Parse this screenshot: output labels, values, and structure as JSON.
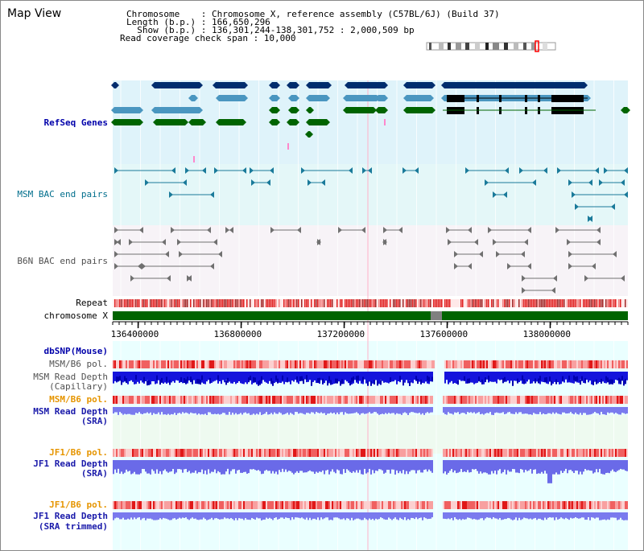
{
  "page_title": "Map View",
  "info": {
    "line1": "Chromosome    : Chromosome X, reference assembly (C57BL/6J) (Build 37)",
    "line2": "Length (b.p.) : 166,650,296",
    "line3": "  Show (b.p.) : 136,301,244-138,301,752 : 2,000,509 bp",
    "line4": "Read coverage check span : 10,000"
  },
  "tracks": {
    "refseq": "RefSeq Genes",
    "msm_bac": "MSM BAC end pairs",
    "b6n_bac": "B6N BAC end pairs",
    "repeat": "Repeat",
    "chromosome": "chromosome X",
    "dbsnp": "dbSNP(Mouse)",
    "msm_b6_pol_cap": "MSM/B6 pol.",
    "msm_depth_cap_1": "MSM Read Depth",
    "msm_depth_cap_2": "(Capillary)",
    "msm_b6_pol_sra": "MSM/B6 pol.",
    "msm_depth_sra_1": "MSM Read Depth",
    "msm_depth_sra_2": "(SRA)",
    "jf1_b6_pol": "JF1/B6 pol.",
    "jf1_depth_1": "JF1 Read Depth",
    "jf1_depth_2": "(SRA)",
    "jf1_b6_pol_trim": "JF1/B6 pol.",
    "jf1_trim_1": "JF1 Read Depth",
    "jf1_trim_2": "(SRA trimmed)"
  },
  "axis": {
    "ticks": [
      "136400000",
      "136800000",
      "137200000",
      "137600000",
      "138000000"
    ],
    "tick_values": [
      136400000,
      136800000,
      137200000,
      137600000,
      138000000
    ],
    "range": [
      136301244,
      138301752
    ]
  },
  "colors": {
    "refseq_bg": "#dff3fa",
    "msm_bac_bg": "#e4f7f8",
    "b6n_bac_bg": "#f7f3f7",
    "lower_bg": "#eaffff",
    "gene_dark": "#002d6e",
    "gene_mid": "#4a96c0",
    "gene_green": "#006400",
    "depth_blue": "#1414dc",
    "depth_light": "#7a7aee",
    "snp_red": "#e62828"
  }
}
